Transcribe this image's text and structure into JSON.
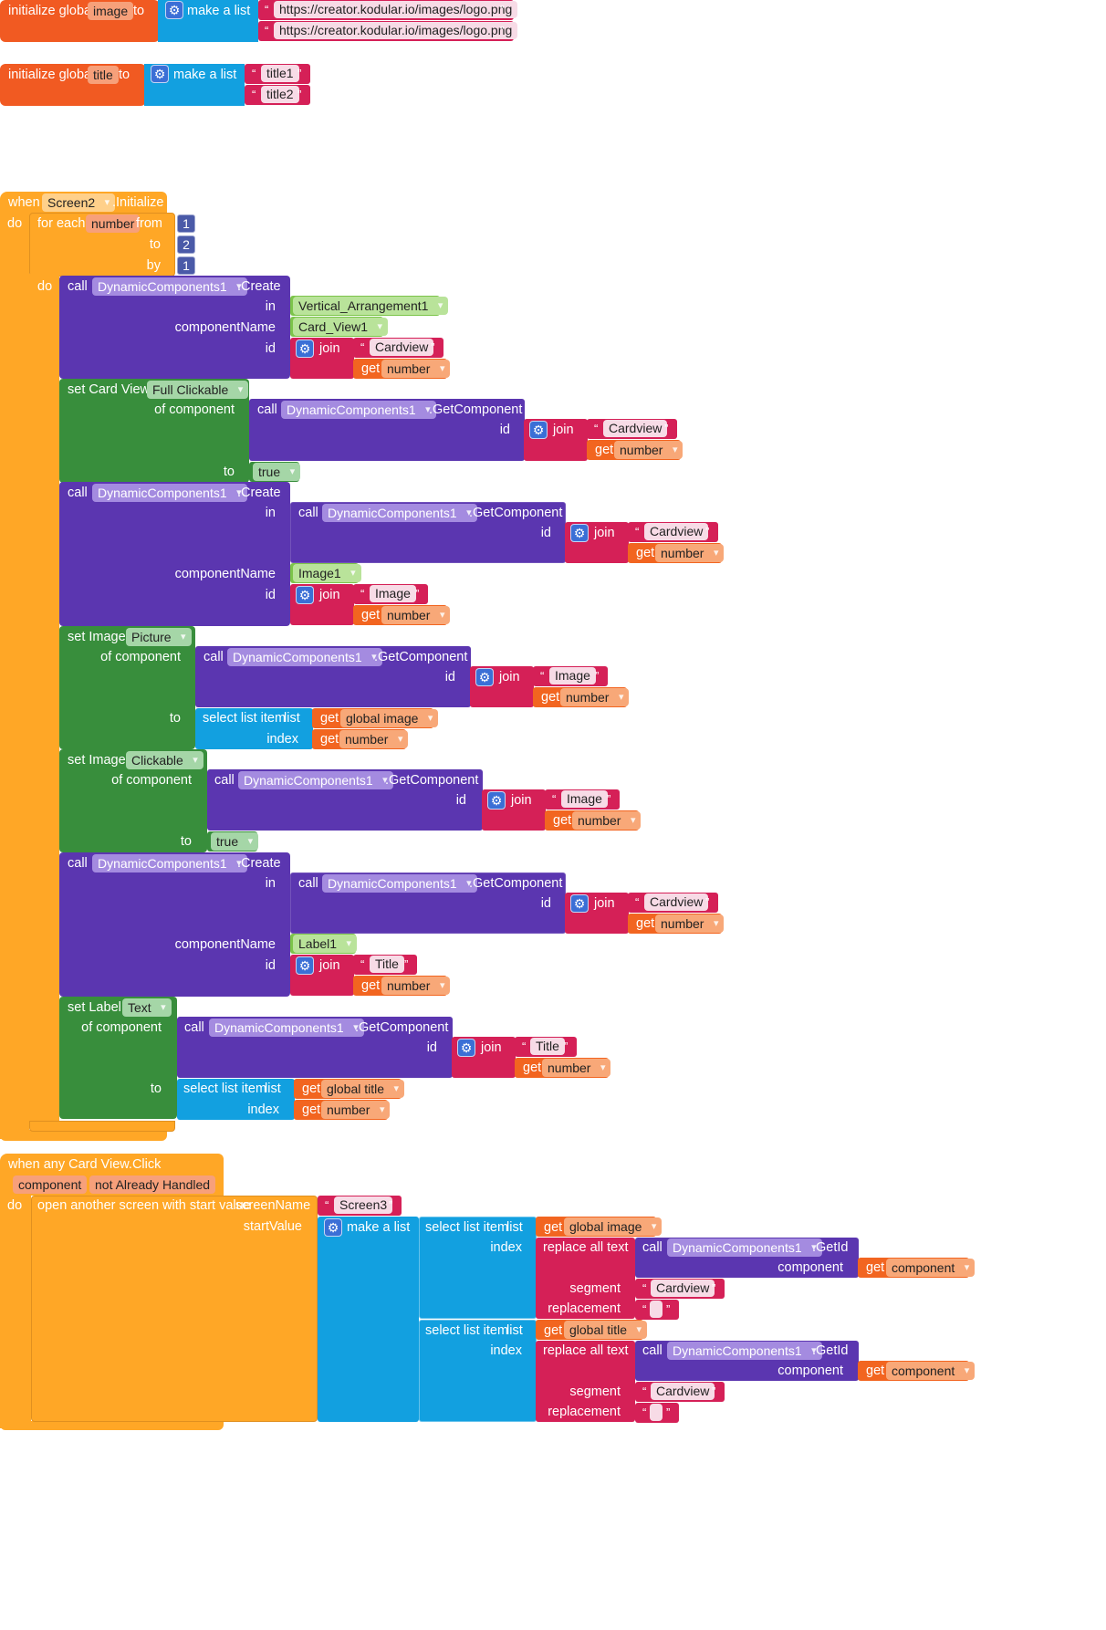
{
  "colors": {
    "orange": "#f15a22",
    "blue": "#12a0e0",
    "pink": "#d52057",
    "amber": "#ffa726",
    "purple": "#5b36b0",
    "green": "#388e3c",
    "lime": "#7cc44a",
    "mathblue": "#3f4ea6",
    "getorange": "#f26520"
  },
  "globals": {
    "image": {
      "kw": "initialize global",
      "name": "image",
      "to": "to",
      "make": "make a list",
      "items": [
        "https://creator.kodular.io/images/logo.png",
        "https://creator.kodular.io/images/logo.png"
      ]
    },
    "title": {
      "kw": "initialize global",
      "name": "title",
      "to": "to",
      "make": "make a list",
      "items": [
        "title1",
        "title2"
      ]
    }
  },
  "ev1": {
    "when": "when",
    "component": "Screen2",
    "event": ".Initialize",
    "do": "do",
    "for": {
      "label": "for each",
      "var": "number",
      "from": "from",
      "to": "to",
      "by": "by",
      "from_v": "1",
      "to_v": "2",
      "by_v": "1",
      "do": "do"
    },
    "call": "call",
    "create": ".Create",
    "in": "in",
    "componentName": "componentName",
    "id": "id",
    "join": "join",
    "get": "get",
    "dyn": "DynamicComponents1",
    "getComp": ".GetComponent",
    "c1": {
      "in": "Vertical_Arrangement1",
      "cname": "Card_View1",
      "str": "Cardview"
    },
    "s1": {
      "set": "set Card View.",
      "prop": "Full Clickable",
      "of": "of component",
      "str": "Cardview",
      "to": "to",
      "val": "true"
    },
    "c2": {
      "str": "Cardview",
      "cname": "Image1",
      "idstr": "Image"
    },
    "s2": {
      "set": "set Image.",
      "prop": "Picture",
      "of": "of component",
      "str": "Image",
      "to": "to",
      "sel": "select list item",
      "list": "list",
      "index": "index",
      "global": "global image"
    },
    "s3": {
      "set": "set Image.",
      "prop": "Clickable",
      "of": "of component",
      "str": "Image",
      "to": "to",
      "val": "true"
    },
    "c3": {
      "str": "Cardview",
      "cname": "Label1",
      "idstr": "Title"
    },
    "s4": {
      "set": "set Label.",
      "prop": "Text",
      "of": "of component",
      "str": "Title",
      "to": "to",
      "sel": "select list item",
      "list": "list",
      "index": "index",
      "global": "global title"
    }
  },
  "ev2": {
    "when": "when any Card View.Click",
    "p1": "component",
    "p2": "not Already Handled",
    "do": "do",
    "open": "open another screen with start value",
    "screenName": "screenName",
    "startValue": "startValue",
    "screen": "Screen3",
    "make": "make a list",
    "sel": "select list item",
    "list": "list",
    "index": "index",
    "replace": "replace all text",
    "segment": "segment",
    "replacement": "replacement",
    "gid": ".GetId",
    "component": "component",
    "get": "get",
    "call": "call",
    "dyn": "DynamicComponents1",
    "var": "component",
    "g1": "global image",
    "g2": "global title",
    "seg": "Cardview",
    "rep": ""
  }
}
